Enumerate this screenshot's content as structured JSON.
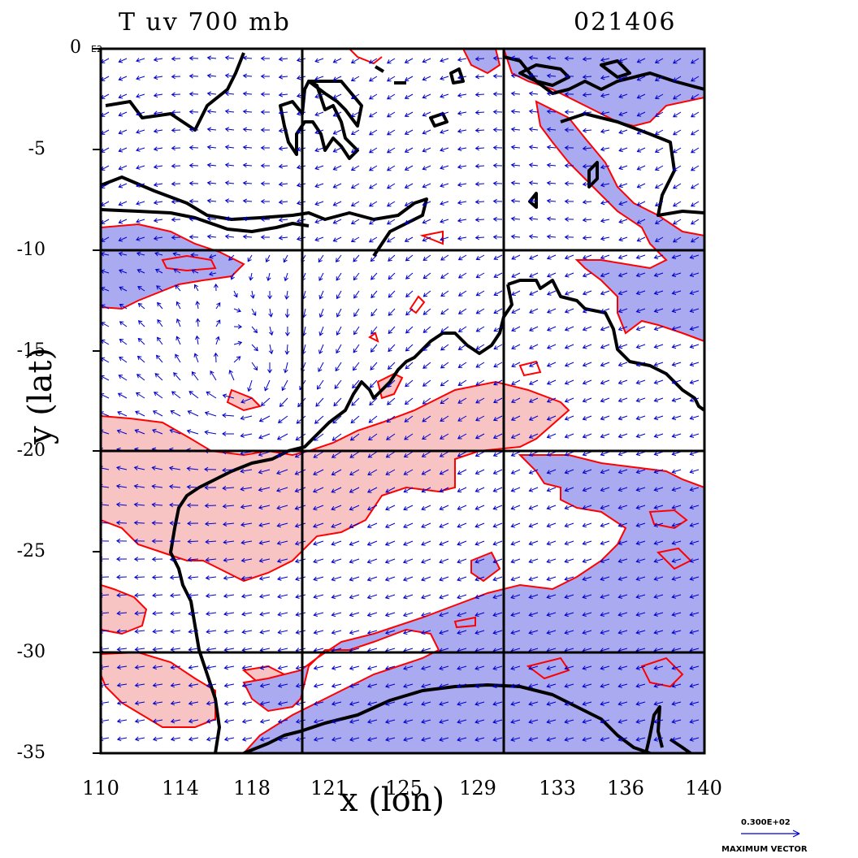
{
  "header": {
    "variable_title": "T  uv  700  mb",
    "date_code": "021406"
  },
  "axes": {
    "x_title": "x  (lon)",
    "y_title": "y  (lat)",
    "x_ticks": [
      "110",
      "114",
      "118",
      "121",
      "125",
      "129",
      "133",
      "136",
      "140"
    ],
    "y_ticks": [
      "0",
      "-5",
      "-10",
      "-15",
      "-20",
      "-25",
      "-30",
      "-35"
    ],
    "y_top_suffix": "E2",
    "x_range": [
      110,
      140
    ],
    "y_range": [
      -35,
      0
    ],
    "grid_lines_lon": [
      120,
      130
    ],
    "grid_lines_lat": [
      -10,
      -20,
      -30
    ]
  },
  "legend": {
    "vector_magnitude": "0.300E+02",
    "vector_label": "MAXIMUM VECTOR"
  },
  "colors": {
    "warm_anomaly_fill": "#f7c3c3",
    "cold_anomaly_fill": "#aaaaf0",
    "contour_line": "#ff0000",
    "coastline": "#000000",
    "wind_vector": "#0000cc"
  }
}
